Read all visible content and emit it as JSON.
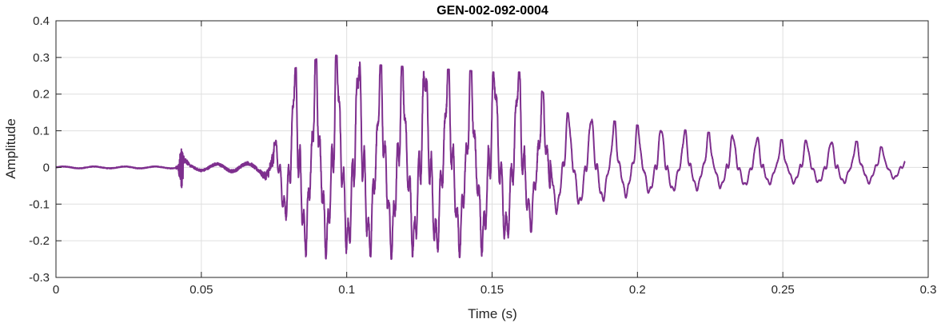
{
  "chart_data": {
    "type": "line",
    "title": "GEN-002-092-0004",
    "xlabel": "Time (s)",
    "ylabel": "Amplitude",
    "xlim": [
      0,
      0.3
    ],
    "ylim": [
      -0.3,
      0.4
    ],
    "x_ticks": [
      0,
      0.05,
      0.1,
      0.15,
      0.2,
      0.25,
      0.3
    ],
    "x_tick_labels": [
      "0",
      "0.05",
      "0.1",
      "0.15",
      "0.2",
      "0.25",
      "0.3"
    ],
    "y_ticks": [
      -0.3,
      -0.2,
      -0.1,
      0,
      0.1,
      0.2,
      0.3,
      0.4
    ],
    "y_tick_labels": [
      "-0.3",
      "-0.2",
      "-0.1",
      "0",
      "0.1",
      "0.2",
      "0.3",
      "0.4"
    ],
    "grid": true,
    "line_color": "#7E2F8E",
    "signal": {
      "duration": 0.292,
      "onset_click_time": 0.0425,
      "voiced_onset": 0.075,
      "envelope": [
        {
          "t": 0.0,
          "pos": 0.004,
          "neg": -0.004
        },
        {
          "t": 0.042,
          "pos": 0.004,
          "neg": -0.004
        },
        {
          "t": 0.043,
          "pos": 0.055,
          "neg": -0.06
        },
        {
          "t": 0.046,
          "pos": 0.012,
          "neg": -0.012
        },
        {
          "t": 0.07,
          "pos": 0.02,
          "neg": -0.015
        },
        {
          "t": 0.075,
          "pos": 0.08,
          "neg": -0.04
        },
        {
          "t": 0.082,
          "pos": 0.27,
          "neg": -0.24
        },
        {
          "t": 0.094,
          "pos": 0.31,
          "neg": -0.25
        },
        {
          "t": 0.11,
          "pos": 0.28,
          "neg": -0.25
        },
        {
          "t": 0.13,
          "pos": 0.27,
          "neg": -0.25
        },
        {
          "t": 0.15,
          "pos": 0.26,
          "neg": -0.24
        },
        {
          "t": 0.16,
          "pos": 0.26,
          "neg": -0.19
        },
        {
          "t": 0.175,
          "pos": 0.15,
          "neg": -0.13
        },
        {
          "t": 0.2,
          "pos": 0.115,
          "neg": -0.085
        },
        {
          "t": 0.25,
          "pos": 0.075,
          "neg": -0.05
        },
        {
          "t": 0.28,
          "pos": 0.07,
          "neg": -0.05
        },
        {
          "t": 0.292,
          "pos": 0.025,
          "neg": -0.03
        }
      ]
    }
  }
}
